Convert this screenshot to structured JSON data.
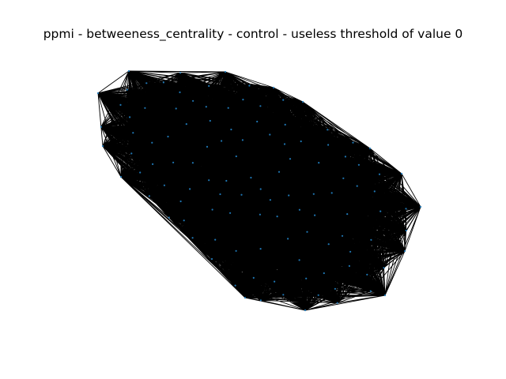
{
  "title": "ppmi - betweeness_centrality - control - useless threshold of value 0",
  "colors": {
    "background": "#ffffff",
    "edge": "#000000",
    "node": "#1f77b4"
  },
  "graph": {
    "type": "network",
    "layout": "spring",
    "edge_density": "complete",
    "node_count": 116
  }
}
